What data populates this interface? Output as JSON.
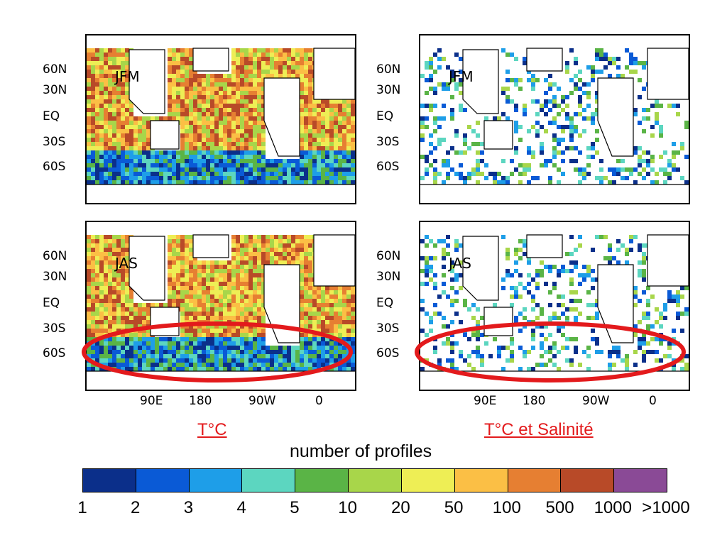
{
  "panels": [
    {
      "id": "tl",
      "season": "JFM",
      "variable": "temperature"
    },
    {
      "id": "tr",
      "season": "JFM",
      "variable": "temperature-salinity"
    },
    {
      "id": "bl",
      "season": "JAS",
      "variable": "temperature"
    },
    {
      "id": "br",
      "season": "JAS",
      "variable": "temperature-salinity"
    }
  ],
  "lat_labels": [
    "60N",
    "30N",
    "EQ",
    "30S",
    "60S"
  ],
  "lon_labels": [
    "90E",
    "180",
    "90W",
    "0"
  ],
  "captions": {
    "left": "T°C",
    "right": "T°C et Salinité"
  },
  "legend": {
    "title": "number of profiles",
    "ticks": [
      "1",
      "2",
      "3",
      "4",
      "5",
      "10",
      "20",
      "50",
      "100",
      "500",
      "1000",
      ">1000"
    ],
    "colors": [
      "#0b2f8a",
      "#0a5ad6",
      "#1e9ee8",
      "#5cd6c0",
      "#5ab446",
      "#a8d64a",
      "#eeee55",
      "#fbbf45",
      "#e67f32",
      "#b84a28",
      "#8a4a96"
    ]
  },
  "highlight_color": "#e31a1c"
}
